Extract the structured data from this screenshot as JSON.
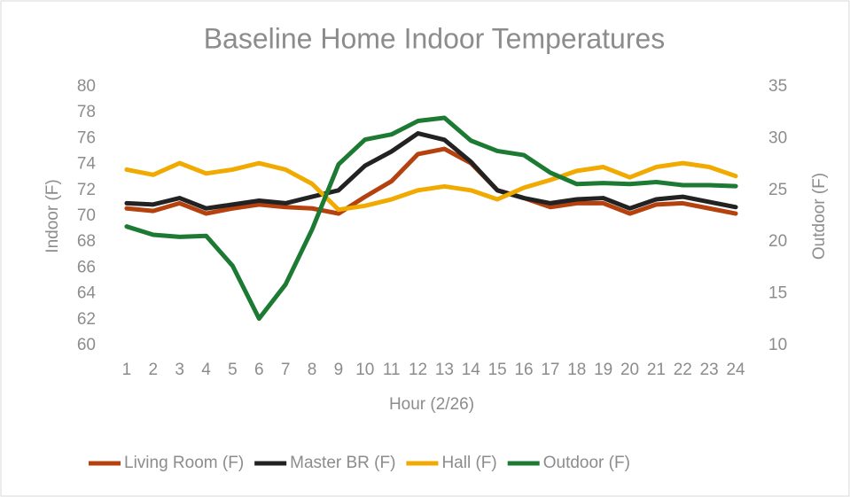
{
  "chart_data": {
    "type": "line",
    "title": "Baseline Home Indoor Temperatures",
    "x_label": "Hour (2/26)",
    "y_label": "Indoor (F)",
    "y2_label": "Outdoor (F)",
    "categories": [
      "1",
      "2",
      "3",
      "4",
      "5",
      "6",
      "7",
      "8",
      "9",
      "10",
      "11",
      "12",
      "13",
      "14",
      "15",
      "16",
      "17",
      "18",
      "19",
      "20",
      "21",
      "22",
      "23",
      "24"
    ],
    "ylim": [
      60,
      80
    ],
    "yticks": [
      60,
      62,
      64,
      66,
      68,
      70,
      72,
      74,
      76,
      78,
      80
    ],
    "y2lim": [
      10,
      35
    ],
    "y2ticks": [
      10,
      15,
      20,
      25,
      30,
      35
    ],
    "grid": false,
    "legend": "bottom",
    "series": [
      {
        "name": "Living Room (F)",
        "color": "#b5410f",
        "values": [
          70.6,
          70.4,
          71.0,
          70.2,
          70.6,
          70.9,
          70.7,
          70.6,
          70.2,
          71.5,
          72.7,
          74.8,
          75.2,
          74.1,
          72.0,
          71.4,
          70.7,
          71.0,
          71.0,
          70.2,
          70.9,
          71.0,
          70.6,
          70.2
        ]
      },
      {
        "name": "Master BR (F)",
        "color": "#222222",
        "values": [
          71.0,
          70.9,
          71.4,
          70.6,
          70.9,
          71.2,
          71.0,
          71.5,
          72.0,
          73.9,
          75.0,
          76.4,
          75.9,
          74.2,
          72.0,
          71.4,
          71.0,
          71.3,
          71.4,
          70.6,
          71.3,
          71.5,
          71.1,
          70.7
        ]
      },
      {
        "name": "Hall (F)",
        "color": "#f0aa00",
        "values": [
          73.6,
          73.2,
          74.1,
          73.3,
          73.6,
          74.1,
          73.6,
          72.5,
          70.5,
          70.8,
          71.3,
          72.0,
          72.3,
          72.0,
          71.3,
          72.2,
          72.8,
          73.5,
          73.8,
          73.0,
          73.8,
          74.1,
          73.8,
          73.1
        ]
      },
      {
        "name": "Outdoor (F)",
        "color": "#1d7a32",
        "axis": "y2",
        "values": [
          21.5,
          20.7,
          20.5,
          20.6,
          17.7,
          12.6,
          15.9,
          21.2,
          27.5,
          29.9,
          30.4,
          31.7,
          32.0,
          29.8,
          28.8,
          28.4,
          26.7,
          25.6,
          25.7,
          25.6,
          25.8,
          25.5,
          25.5,
          25.4
        ]
      }
    ]
  }
}
